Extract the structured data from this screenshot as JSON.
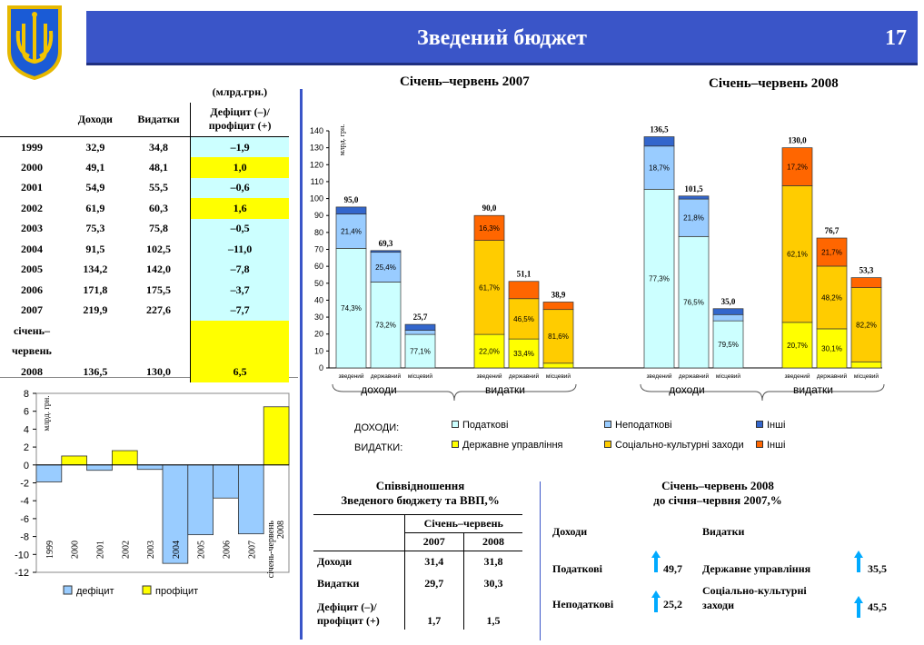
{
  "header": {
    "title": "Зведений бюджет",
    "page_number": "17"
  },
  "history_table": {
    "unit": "(млрд.грн.)",
    "headers": [
      "",
      "Доходи",
      "Видатки",
      "Дефіцит (–)/ профіцит (+)"
    ],
    "rows": [
      {
        "year": "1999",
        "income": "32,9",
        "expense": "34,8",
        "balance": "–1,9",
        "surplus": false
      },
      {
        "year": "2000",
        "income": "49,1",
        "expense": "48,1",
        "balance": "1,0",
        "surplus": true
      },
      {
        "year": "2001",
        "income": "54,9",
        "expense": "55,5",
        "balance": "–0,6",
        "surplus": false
      },
      {
        "year": "2002",
        "income": "61,9",
        "expense": "60,3",
        "balance": "1,6",
        "surplus": true
      },
      {
        "year": "2003",
        "income": "75,3",
        "expense": "75,8",
        "balance": "–0,5",
        "surplus": false
      },
      {
        "year": "2004",
        "income": "91,5",
        "expense": "102,5",
        "balance": "–11,0",
        "surplus": false
      },
      {
        "year": "2005",
        "income": "134,2",
        "expense": "142,0",
        "balance": "–7,8",
        "surplus": false
      },
      {
        "year": "2006",
        "income": "171,8",
        "expense": "175,5",
        "balance": "–3,7",
        "surplus": false
      },
      {
        "year": "2007",
        "income": "219,9",
        "expense": "227,6",
        "balance": "–7,7",
        "surplus": false
      }
    ],
    "last_row": {
      "label1": "січень–",
      "label2": "червень",
      "year": "2008",
      "income": "136,5",
      "expense": "130,0",
      "balance": "6,5"
    }
  },
  "chart_data": [
    {
      "type": "bar",
      "ylabel": "млрд. грн.",
      "ylim": [
        -12,
        8
      ],
      "yticks": [
        8,
        6,
        4,
        2,
        0,
        -2,
        -4,
        -6,
        -8,
        -10,
        -12
      ],
      "categories": [
        "1999",
        "2000",
        "2001",
        "2002",
        "2003",
        "2004",
        "2005",
        "2006",
        "2007",
        "січень-червень 2008"
      ],
      "values": [
        -1.9,
        1.0,
        -0.6,
        1.6,
        -0.5,
        -11.0,
        -7.8,
        -3.7,
        -7.7,
        6.5
      ],
      "legend": [
        "дефіцит",
        "профіцит"
      ],
      "colors": {
        "deficit": "#99ccff",
        "surplus": "#ffff00"
      }
    },
    {
      "type": "bar",
      "stacked": true,
      "ylabel": "млрд. грн.",
      "ylim": [
        0,
        140
      ],
      "yticks": [
        0,
        10,
        20,
        30,
        40,
        50,
        60,
        70,
        80,
        90,
        100,
        110,
        120,
        130,
        140
      ],
      "groups": [
        {
          "title": "Січень–червень 2007",
          "sections": [
            {
              "label": "доходи",
              "bars": [
                {
                  "name": "зведений",
                  "total": 95.0,
                  "total_label": "95,0",
                  "segments": [
                    {
                      "value": 70.6,
                      "color": "#ccffff",
                      "label": "74,3%"
                    },
                    {
                      "value": 20.3,
                      "color": "#99ccff",
                      "label": "21,4%"
                    },
                    {
                      "value": 4.1,
                      "color": "#3366cc",
                      "label": ""
                    }
                  ]
                },
                {
                  "name": "державний",
                  "total": 69.3,
                  "total_label": "69,3",
                  "segments": [
                    {
                      "value": 50.7,
                      "color": "#ccffff",
                      "label": "73,2%"
                    },
                    {
                      "value": 17.6,
                      "color": "#99ccff",
                      "label": "25,4%"
                    },
                    {
                      "value": 1.0,
                      "color": "#3366cc",
                      "label": ""
                    }
                  ]
                },
                {
                  "name": "місцевий",
                  "total": 25.7,
                  "total_label": "25,7",
                  "segments": [
                    {
                      "value": 19.8,
                      "color": "#ccffff",
                      "label": "77,1%"
                    },
                    {
                      "value": 2.4,
                      "color": "#99ccff",
                      "label": ""
                    },
                    {
                      "value": 3.5,
                      "color": "#3366cc",
                      "label": ""
                    }
                  ]
                }
              ]
            },
            {
              "label": "видатки",
              "bars": [
                {
                  "name": "зведений",
                  "total": 90.0,
                  "total_label": "90,0",
                  "segments": [
                    {
                      "value": 19.8,
                      "color": "#ffff00",
                      "label": "22,0%"
                    },
                    {
                      "value": 55.5,
                      "color": "#ffcc00",
                      "label": "61,7%"
                    },
                    {
                      "value": 14.7,
                      "color": "#ff6600",
                      "label": "16,3%"
                    }
                  ]
                },
                {
                  "name": "державний",
                  "total": 51.1,
                  "total_label": "51,1",
                  "segments": [
                    {
                      "value": 17.1,
                      "color": "#ffff00",
                      "label": "33,4%"
                    },
                    {
                      "value": 23.8,
                      "color": "#ffcc00",
                      "label": "46,5%"
                    },
                    {
                      "value": 10.2,
                      "color": "#ff6600",
                      "label": ""
                    }
                  ]
                },
                {
                  "name": "місцевий",
                  "total": 38.9,
                  "total_label": "38,9",
                  "segments": [
                    {
                      "value": 2.8,
                      "color": "#ffff00",
                      "label": ""
                    },
                    {
                      "value": 31.7,
                      "color": "#ffcc00",
                      "label": "81,6%"
                    },
                    {
                      "value": 4.4,
                      "color": "#ff6600",
                      "label": ""
                    }
                  ]
                }
              ]
            }
          ]
        },
        {
          "title": "Січень–червень 2008",
          "sections": [
            {
              "label": "доходи",
              "bars": [
                {
                  "name": "зведений",
                  "total": 136.5,
                  "total_label": "136,5",
                  "segments": [
                    {
                      "value": 105.5,
                      "color": "#ccffff",
                      "label": "77,3%"
                    },
                    {
                      "value": 25.5,
                      "color": "#99ccff",
                      "label": "18,7%"
                    },
                    {
                      "value": 5.5,
                      "color": "#3366cc",
                      "label": ""
                    }
                  ]
                },
                {
                  "name": "державний",
                  "total": 101.5,
                  "total_label": "101,5",
                  "segments": [
                    {
                      "value": 77.6,
                      "color": "#ccffff",
                      "label": "76,5%"
                    },
                    {
                      "value": 22.1,
                      "color": "#99ccff",
                      "label": "21,8%"
                    },
                    {
                      "value": 1.8,
                      "color": "#3366cc",
                      "label": ""
                    }
                  ]
                },
                {
                  "name": "місцевий",
                  "total": 35.0,
                  "total_label": "35,0",
                  "segments": [
                    {
                      "value": 27.8,
                      "color": "#ccffff",
                      "label": "79,5%"
                    },
                    {
                      "value": 3.7,
                      "color": "#99ccff",
                      "label": ""
                    },
                    {
                      "value": 3.5,
                      "color": "#3366cc",
                      "label": ""
                    }
                  ]
                }
              ]
            },
            {
              "label": "видатки",
              "bars": [
                {
                  "name": "зведений",
                  "total": 130.0,
                  "total_label": "130,0",
                  "segments": [
                    {
                      "value": 26.9,
                      "color": "#ffff00",
                      "label": "20,7%"
                    },
                    {
                      "value": 80.7,
                      "color": "#ffcc00",
                      "label": "62,1%"
                    },
                    {
                      "value": 22.4,
                      "color": "#ff6600",
                      "label": "17,2%"
                    }
                  ]
                },
                {
                  "name": "державний",
                  "total": 76.7,
                  "total_label": "76,7",
                  "segments": [
                    {
                      "value": 23.1,
                      "color": "#ffff00",
                      "label": "30,1%"
                    },
                    {
                      "value": 37.0,
                      "color": "#ffcc00",
                      "label": "48,2%"
                    },
                    {
                      "value": 16.6,
                      "color": "#ff6600",
                      "label": "21,7%"
                    }
                  ]
                },
                {
                  "name": "місцевий",
                  "total": 53.3,
                  "total_label": "53,3",
                  "segments": [
                    {
                      "value": 3.6,
                      "color": "#ffff00",
                      "label": ""
                    },
                    {
                      "value": 43.8,
                      "color": "#ffcc00",
                      "label": "82,2%"
                    },
                    {
                      "value": 5.9,
                      "color": "#ff6600",
                      "label": ""
                    }
                  ]
                }
              ]
            }
          ]
        }
      ],
      "legend": {
        "income_label": "ДОХОДИ:",
        "expense_label": "ВИДАТКИ:",
        "income_items": [
          {
            "label": "Податкові",
            "color": "#ccffff"
          },
          {
            "label": "Неподаткові",
            "color": "#99ccff"
          },
          {
            "label": "Інші",
            "color": "#3366cc"
          }
        ],
        "expense_items": [
          {
            "label": "Державне управління",
            "color": "#ffff00"
          },
          {
            "label": "Соціально-культурні заходи",
            "color": "#ffcc00"
          },
          {
            "label": "Інші",
            "color": "#ff6600"
          }
        ]
      }
    }
  ],
  "gdp_ratio": {
    "title1": "Співвідношення",
    "title2": "Зведеного бюджету та ВВП,%",
    "period_header": "Січень–червень",
    "years": [
      "2007",
      "2008"
    ],
    "rows": [
      {
        "label": "Доходи",
        "v2007": "31,4",
        "v2008": "31,8"
      },
      {
        "label": "Видатки",
        "v2007": "29,7",
        "v2008": "30,3"
      },
      {
        "label1": "Дефіцит (–)/",
        "label2": "профіцит (+)",
        "v2007": "1,7",
        "v2008": "1,5"
      }
    ]
  },
  "comparison": {
    "title1": "Січень–червень 2008",
    "title2": "до січня–червня 2007,%",
    "income_header": "Доходи",
    "expense_header": "Видатки",
    "income_rows": [
      {
        "label": "Податкові",
        "value": "49,7"
      },
      {
        "label": "Неподаткові",
        "value": "25,2"
      }
    ],
    "expense_rows": [
      {
        "label": "Державне управління",
        "value": "35,5"
      },
      {
        "label1": "Соціально-культурні",
        "label2": "заходи",
        "value": "45,5"
      }
    ],
    "arrow_color": "#00aaff"
  },
  "colors": {
    "header_bg": "#3a55c8",
    "surplus_cell": "#ffff00",
    "deficit_cell": "#ccffff"
  }
}
